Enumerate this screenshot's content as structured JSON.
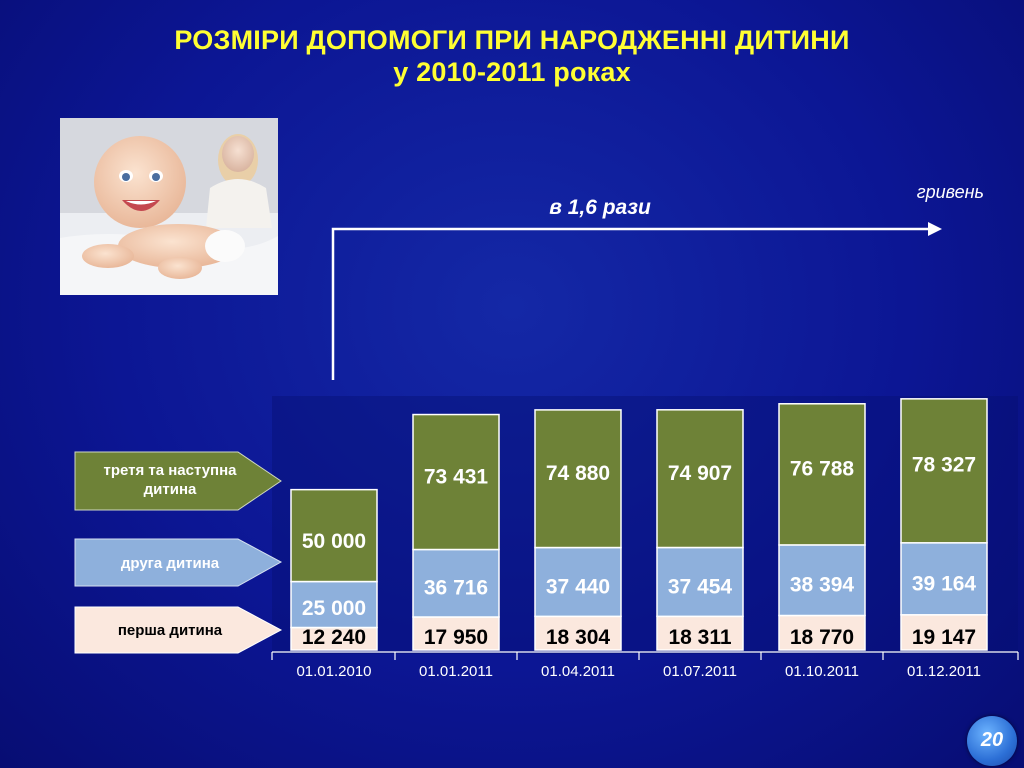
{
  "title": {
    "line1": "РОЗМІРИ ДОПОМОГИ ПРИ НАРОДЖЕННІ ДИТИНИ",
    "line2": "у 2010-2011 роках"
  },
  "photo": {
    "icon": "baby-photo"
  },
  "unit_label": "гривень",
  "growth_label": "в 1,6 рази",
  "legend": {
    "third": "третя та наступна дитина",
    "second": "друга дитина",
    "first": "перша дитина"
  },
  "page_number": "20",
  "colors": {
    "background": "#0c1694",
    "title": "#ffff33",
    "third": "#6e8237",
    "second": "#8eb0dc",
    "first": "#fbe8de",
    "value_light": "#ffffff",
    "value_dark": "#000000"
  },
  "chart_data": {
    "type": "bar",
    "stacked": true,
    "categories": [
      "01.01.2010",
      "01.01.2011",
      "01.04.2011",
      "01.07.2011",
      "01.10.2011",
      "01.12.2011"
    ],
    "series": [
      {
        "name": "перша дитина",
        "values": [
          12240,
          17950,
          18304,
          18311,
          18770,
          19147
        ]
      },
      {
        "name": "друга дитина",
        "values": [
          25000,
          36716,
          37440,
          37454,
          38394,
          39164
        ]
      },
      {
        "name": "третя та наступна дитина",
        "values": [
          50000,
          73431,
          74880,
          74907,
          76788,
          78327
        ]
      }
    ],
    "value_labels": {
      "first": [
        "12 240",
        "17 950",
        "18 304",
        "18 311",
        "18 770",
        "19 147"
      ],
      "second": [
        "25 000",
        "36 716",
        "37 440",
        "37 454",
        "38 394",
        "39 164"
      ],
      "third": [
        "50 000",
        "73 431",
        "74 880",
        "74 907",
        "76 788",
        "78 327"
      ]
    },
    "ylabel": "гривень",
    "grid": false,
    "legend_position": "left"
  }
}
